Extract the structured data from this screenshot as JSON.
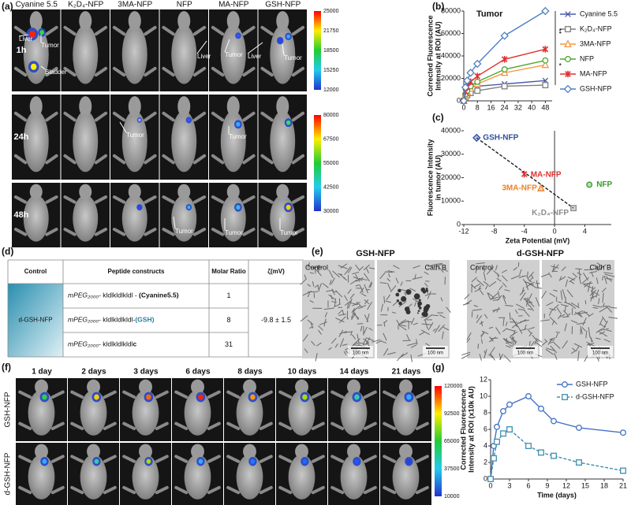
{
  "panel_labels": [
    "(a)",
    "(b)",
    "(c)",
    "(d)",
    "(e)",
    "(f)",
    "(g)"
  ],
  "panel_a": {
    "columns": [
      "Cyanine 5.5",
      "K₂D₄-NFP",
      "3MA-NFP",
      "NFP",
      "MA-NFP",
      "GSH-NFP"
    ],
    "rows": [
      "1h",
      "24h",
      "48h"
    ],
    "annotations": [
      "Liver",
      "Tumor",
      "Bladder"
    ],
    "colorbar_1": [
      25000,
      21750,
      18500,
      15250,
      12000
    ],
    "colorbar_2": [
      80000,
      67500,
      55000,
      42500,
      30000
    ]
  },
  "chart_data": [
    {
      "type": "line",
      "title": "Tumor",
      "ylabel": [
        "Corrected Fluorescence",
        "Intensity at ROI (AU)"
      ],
      "x": [
        0,
        1,
        2,
        4,
        8,
        24,
        48
      ],
      "xlim": [
        0,
        52
      ],
      "xticks": [
        0,
        8,
        16,
        24,
        32,
        40,
        48
      ],
      "ylim": [
        0,
        80000
      ],
      "yticks": [
        0,
        20000,
        40000,
        60000,
        80000
      ],
      "annotations": [
        "**",
        "*"
      ],
      "series": [
        {
          "name": "Cyanine 5.5",
          "color": "#4a5aa8",
          "marker": "x",
          "values": [
            0,
            9000,
            11000,
            12500,
            13000,
            15000,
            18000
          ]
        },
        {
          "name": "K₂D₄-NFP",
          "color": "#7f7f7f",
          "marker": "square",
          "values": [
            0,
            3000,
            5000,
            7000,
            9000,
            13000,
            14000
          ]
        },
        {
          "name": "3MA-NFP",
          "color": "#f79646",
          "marker": "triangle",
          "values": [
            0,
            5000,
            8000,
            11000,
            15000,
            25000,
            32000
          ]
        },
        {
          "name": "NFP",
          "color": "#4ea72e",
          "marker": "circle",
          "values": [
            0,
            6000,
            9000,
            13000,
            17000,
            28000,
            36000
          ]
        },
        {
          "name": "MA-NFP",
          "color": "#e03030",
          "marker": "star",
          "values": [
            0,
            8000,
            12000,
            17000,
            22000,
            37000,
            46000
          ]
        },
        {
          "name": "GSH-NFP",
          "color": "#4f81bd",
          "marker": "diamond",
          "values": [
            0,
            12000,
            18000,
            25000,
            33000,
            58000,
            80000
          ]
        }
      ]
    },
    {
      "type": "scatter",
      "xlabel": "Zeta Potential (mV)",
      "ylabel": [
        "Fluorescence Intensity",
        "in tumor (AU)"
      ],
      "xlim": [
        -12,
        7.5
      ],
      "xticks": [
        -12,
        -8,
        -4,
        0,
        4
      ],
      "ylim": [
        0,
        40000
      ],
      "yticks": [
        0,
        10000,
        20000,
        30000,
        40000
      ],
      "trendline": true,
      "series": [
        {
          "name": "GSH-NFP",
          "color": "#2f4f9f",
          "marker": "diamond",
          "x": [
            -10.3
          ],
          "values": [
            37000
          ]
        },
        {
          "name": "MA-NFP",
          "color": "#e03030",
          "marker": "star",
          "x": [
            -4
          ],
          "values": [
            21500
          ]
        },
        {
          "name": "3MA-NFP",
          "color": "#e8822a",
          "marker": "triangle",
          "x": [
            -1.8
          ],
          "values": [
            15500
          ]
        },
        {
          "name": "NFP",
          "color": "#3a9a2a",
          "marker": "circle",
          "x": [
            4.6
          ],
          "values": [
            17000
          ]
        },
        {
          "name": "K₂D₄-NFP",
          "color": "#8c8c8c",
          "marker": "square",
          "x": [
            2.5
          ],
          "values": [
            7000
          ]
        }
      ]
    },
    {
      "type": "line",
      "xlabel": "Time (days)",
      "ylabel": [
        "Corrected Fluorescence",
        "Intensity at ROI (x10k AU)"
      ],
      "x": [
        0,
        0.5,
        1,
        2,
        3,
        6,
        8,
        10,
        14,
        21
      ],
      "xlim": [
        0,
        21
      ],
      "xticks": [
        0,
        3,
        6,
        9,
        12,
        15,
        18,
        21
      ],
      "ylim": [
        0,
        12
      ],
      "yticks": [
        0,
        2,
        4,
        6,
        8,
        10,
        12
      ],
      "legend": "top-right",
      "series": [
        {
          "name": "GSH-NFP",
          "color": "#4472c4",
          "marker": "circle",
          "dash": false,
          "values": [
            0,
            4,
            6.3,
            8.2,
            9,
            10,
            8.5,
            7,
            6.2,
            5.6
          ]
        },
        {
          "name": "d-GSH-NFP",
          "color": "#3f8fb0",
          "marker": "square",
          "dash": true,
          "values": [
            0,
            2.5,
            4.5,
            5.5,
            6,
            4,
            3.2,
            2.8,
            2,
            1
          ]
        }
      ]
    }
  ],
  "table_d": {
    "header": [
      "Control",
      "Peptide constructs",
      "Molar Ratio",
      "ζ(mV)"
    ],
    "control": "d-GSH-NFP",
    "rows": [
      {
        "prefix": "mPEG₂₀₀₀-",
        "sequence": " kldlkldlkldl - ",
        "suffix": "(Cyanine5.5)",
        "ratio": 1
      },
      {
        "prefix": "mPEG₂₀₀₀-",
        "sequence": " kldlkldlkldl-",
        "suffix": "(GSH)",
        "ratio": 8
      },
      {
        "prefix": "mPEG₂₀₀₀-",
        "sequence": " kldlkldlkldl",
        "suffix": "c",
        "ratio": 31
      }
    ],
    "zeta": "-9.8 ±  1.5"
  },
  "panel_e": {
    "titles": [
      "GSH-NFP",
      "d-GSH-NFP"
    ],
    "conditions": [
      "Control",
      "Cath B"
    ],
    "scale_bar": "100 nm"
  },
  "panel_f": {
    "columns": [
      "1 day",
      "2 days",
      "3 days",
      "6 days",
      "8 days",
      "10 days",
      "14 days",
      "21 days"
    ],
    "rows": [
      "GSH-NFP",
      "d-GSH-NFP"
    ],
    "colorbar": [
      120000,
      92500,
      65000,
      37500,
      10000
    ]
  }
}
